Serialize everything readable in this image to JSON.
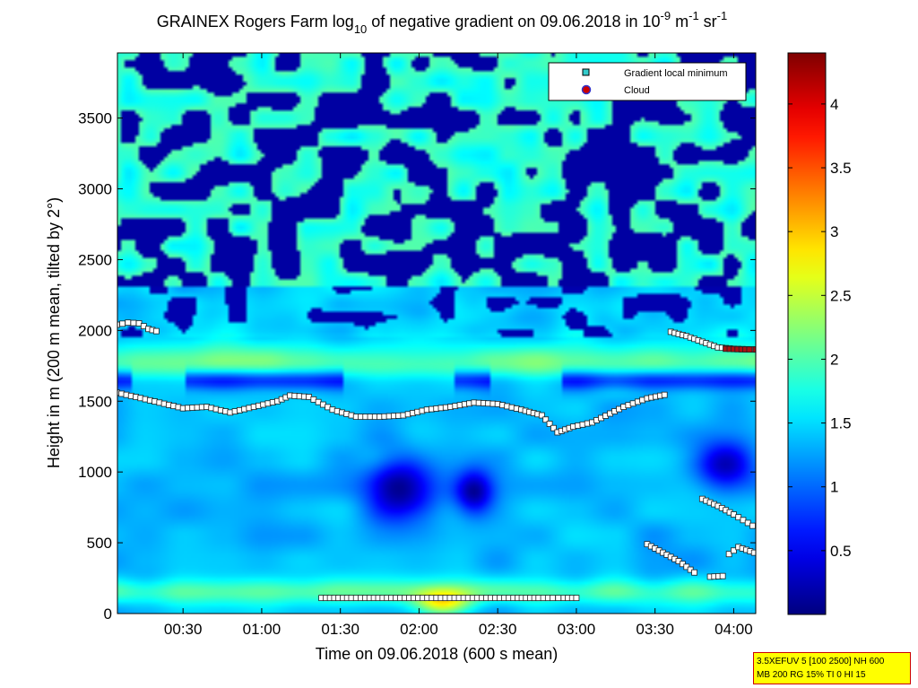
{
  "chart_data": {
    "type": "heatmap",
    "title": {
      "pre": "GRAINEX Rogers Farm log",
      "sub": "10",
      "mid": " of negative gradient on 09.06.2018 in 10",
      "sup1": "-9",
      "mid2": " m",
      "sup2": "-1",
      "mid3": " sr",
      "sup3": "-1"
    },
    "xlabel": "Time on 09.06.2018 (600 s mean)",
    "ylabel": "Height in m (200 m mean, tilted by 2°)",
    "x_range_hours": [
      0.083,
      4.14
    ],
    "y_range_m": [
      0,
      3960
    ],
    "c_range": [
      0,
      4.4
    ],
    "colormap": "jet",
    "x_ticks": [
      {
        "v": 0.5,
        "label": "00:30"
      },
      {
        "v": 1.0,
        "label": "01:00"
      },
      {
        "v": 1.5,
        "label": "01:30"
      },
      {
        "v": 2.0,
        "label": "02:00"
      },
      {
        "v": 2.5,
        "label": "02:30"
      },
      {
        "v": 3.0,
        "label": "03:00"
      },
      {
        "v": 3.5,
        "label": "03:30"
      },
      {
        "v": 4.0,
        "label": "04:00"
      }
    ],
    "y_ticks": [
      {
        "v": 0,
        "label": "0"
      },
      {
        "v": 500,
        "label": "500"
      },
      {
        "v": 1000,
        "label": "1000"
      },
      {
        "v": 1500,
        "label": "1500"
      },
      {
        "v": 2000,
        "label": "2000"
      },
      {
        "v": 2500,
        "label": "2500"
      },
      {
        "v": 3000,
        "label": "3000"
      },
      {
        "v": 3500,
        "label": "3500"
      }
    ],
    "c_ticks": [
      {
        "v": 0.5,
        "label": "0.5"
      },
      {
        "v": 1,
        "label": "1"
      },
      {
        "v": 1.5,
        "label": "1.5"
      },
      {
        "v": 2,
        "label": "2"
      },
      {
        "v": 2.5,
        "label": "2.5"
      },
      {
        "v": 3,
        "label": "3"
      },
      {
        "v": 3.5,
        "label": "3.5"
      },
      {
        "v": 4,
        "label": "4"
      }
    ],
    "legend": {
      "placement": "top-right",
      "entries": [
        {
          "label": "Gradient local minimum",
          "marker": "square",
          "color": "#33cccc"
        },
        {
          "label": "Cloud",
          "marker": "circle",
          "color": "#cc0000"
        }
      ]
    },
    "series": [
      {
        "name": "Gradient local minimum",
        "marker": "square",
        "segments": [
          {
            "points": [
              [
                0.08,
                2040
              ],
              [
                0.15,
                2055
              ],
              [
                0.22,
                2050
              ],
              [
                0.28,
                2010
              ],
              [
                0.33,
                1995
              ]
            ]
          },
          {
            "points": [
              [
                0.08,
                1560
              ],
              [
                0.2,
                1530
              ],
              [
                0.35,
                1490
              ],
              [
                0.5,
                1450
              ],
              [
                0.65,
                1460
              ],
              [
                0.8,
                1420
              ],
              [
                0.95,
                1460
              ],
              [
                1.1,
                1500
              ],
              [
                1.18,
                1540
              ],
              [
                1.3,
                1530
              ],
              [
                1.45,
                1440
              ],
              [
                1.6,
                1390
              ],
              [
                1.75,
                1390
              ],
              [
                1.9,
                1400
              ],
              [
                2.05,
                1440
              ],
              [
                2.2,
                1460
              ],
              [
                2.35,
                1490
              ],
              [
                2.5,
                1480
              ],
              [
                2.65,
                1440
              ],
              [
                2.78,
                1400
              ],
              [
                2.88,
                1280
              ],
              [
                2.98,
                1320
              ],
              [
                3.1,
                1350
              ],
              [
                3.3,
                1460
              ],
              [
                3.45,
                1520
              ],
              [
                3.56,
                1545
              ]
            ]
          },
          {
            "points": [
              [
                3.6,
                1990
              ],
              [
                3.7,
                1960
              ],
              [
                3.8,
                1920
              ],
              [
                3.9,
                1880
              ],
              [
                4.0,
                1870
              ],
              [
                4.14,
                1865
              ]
            ]
          },
          {
            "points": [
              [
                3.45,
                490
              ],
              [
                3.55,
                430
              ],
              [
                3.65,
                370
              ],
              [
                3.75,
                290
              ]
            ]
          },
          {
            "points": [
              [
                3.8,
                810
              ],
              [
                3.9,
                760
              ],
              [
                4.0,
                700
              ],
              [
                4.12,
                620
              ]
            ]
          },
          {
            "points": [
              [
                3.85,
                260
              ],
              [
                3.93,
                265
              ]
            ]
          },
          {
            "points": [
              [
                3.97,
                420
              ],
              [
                4.03,
                470
              ],
              [
                4.08,
                450
              ],
              [
                4.13,
                430
              ]
            ]
          },
          {
            "points": [
              [
                1.38,
                110
              ],
              [
                1.57,
                110
              ],
              [
                1.63,
                110
              ],
              [
                1.88,
                110
              ],
              [
                2.6,
                110
              ],
              [
                2.68,
                110
              ],
              [
                2.76,
                110
              ],
              [
                2.85,
                110
              ],
              [
                2.92,
                110
              ],
              [
                3.0,
                110
              ]
            ]
          }
        ]
      },
      {
        "name": "Cloud",
        "marker": "square-red",
        "segments": [
          {
            "points": [
              [
                3.95,
                1870
              ],
              [
                4.0,
                1868
              ],
              [
                4.05,
                1866
              ],
              [
                4.1,
                1865
              ],
              [
                4.14,
                1865
              ]
            ]
          }
        ]
      }
    ],
    "field_features": [
      {
        "kind": "ground_hotspot",
        "x": 2.15,
        "y": 70,
        "value": 3.0
      },
      {
        "kind": "enhanced_layer",
        "y": 1760,
        "value": 2.1
      },
      {
        "kind": "lower_dark_patch",
        "x": 1.95,
        "y": 880,
        "value": 0.2
      },
      {
        "kind": "lower_dark_patch",
        "x": 2.35,
        "y": 820,
        "value": 0.2
      },
      {
        "kind": "upper_dark_band",
        "y": 3300,
        "value": 0.1
      }
    ]
  },
  "info_box": {
    "line1": "3.5XEFUV 5 [100 2500] NH 600",
    "line2": "MB 200 RG 15% TI 0 HI 15"
  }
}
